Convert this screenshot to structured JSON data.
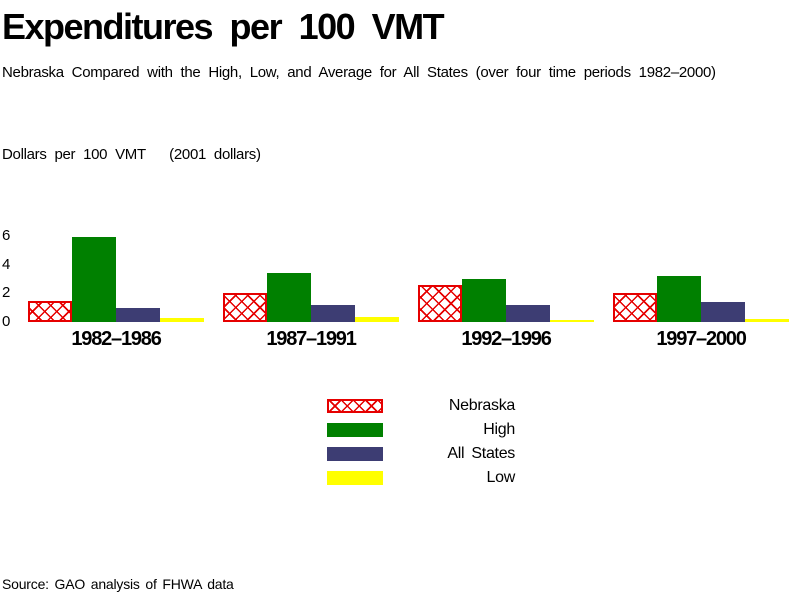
{
  "title": "Expenditures per 100 VMT",
  "subtitle": "Nebraska Compared with the High, Low, and Average for All States (over four time periods 1982–2000)",
  "axis_title": "Dollars per 100 VMT   (2001 dollars)",
  "source": "Source: GAO analysis of FHWA data",
  "colors": {
    "nebraska": "#e60000",
    "high": "#008000",
    "all_states": "#3d3d73",
    "low": "#ffff00"
  },
  "legend": [
    {
      "label": "Nebraska",
      "series": "nebraska"
    },
    {
      "label": "High",
      "series": "high"
    },
    {
      "label": "All States",
      "series": "all_states"
    },
    {
      "label": "Low",
      "series": "low"
    }
  ],
  "chart_data": {
    "type": "bar",
    "categories": [
      "1982–1986",
      "1987–1991",
      "1992–1996",
      "1997–2000"
    ],
    "series": [
      {
        "name": "Nebraska",
        "key": "nebraska",
        "values": [
          1.5,
          2.0,
          2.6,
          2.0
        ]
      },
      {
        "name": "High",
        "key": "high",
        "values": [
          5.9,
          3.4,
          3.0,
          3.2
        ]
      },
      {
        "name": "All States",
        "key": "all_states",
        "values": [
          1.0,
          1.2,
          1.2,
          1.4
        ]
      },
      {
        "name": "Low",
        "key": "low",
        "values": [
          0.25,
          0.35,
          0.1,
          0.2
        ]
      }
    ],
    "title": "Expenditures per 100 VMT",
    "xlabel": "",
    "ylabel": "Dollars per 100 VMT (2001 dollars)",
    "yticks": [
      0,
      2,
      4,
      6
    ],
    "ylim": [
      0,
      6.5
    ],
    "grid": false,
    "legend_position": "bottom-center"
  }
}
